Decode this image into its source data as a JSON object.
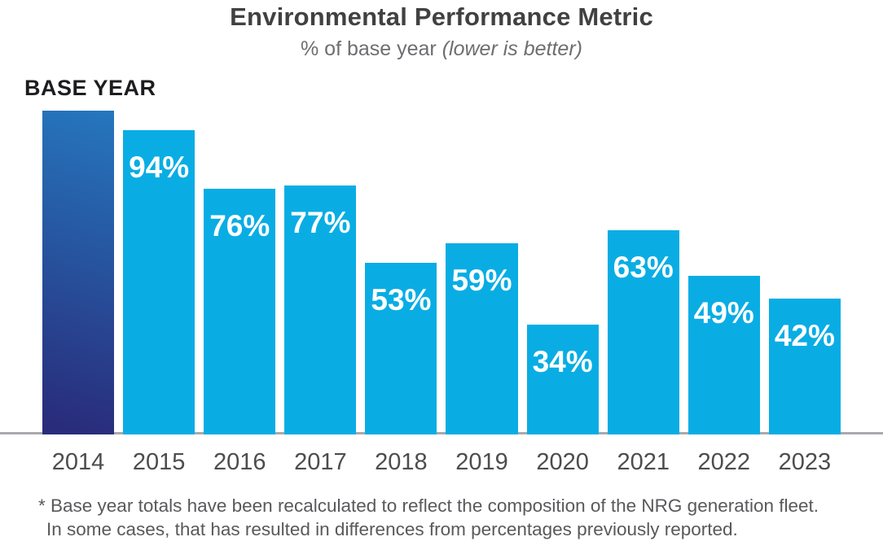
{
  "header": {
    "title": "Environmental Performance Metric",
    "subtitle_prefix": "% of base year ",
    "subtitle_italic": "(lower is better)"
  },
  "chart_data": {
    "type": "bar",
    "title": "Environmental Performance Metric",
    "subtitle": "% of base year (lower is better)",
    "base_year_label": "BASE YEAR",
    "categories": [
      "2014",
      "2015",
      "2016",
      "2017",
      "2018",
      "2019",
      "2020",
      "2021",
      "2022",
      "2023"
    ],
    "values": [
      100,
      94,
      76,
      77,
      53,
      59,
      34,
      63,
      49,
      42
    ],
    "bar_labels": [
      "",
      "94%",
      "76%",
      "77%",
      "53%",
      "59%",
      "34%",
      "63%",
      "49%",
      "42%"
    ],
    "ylim": [
      0,
      100
    ],
    "grid": false,
    "legend": "none",
    "colors": {
      "bar": "#09ade4",
      "base_bar_gradient_top": "#2577be",
      "base_bar_gradient_bottom": "#292c7b",
      "baseline": "#a8aaad",
      "title_text": "#414042",
      "subtitle_text": "#6d6e71",
      "axis_text": "#4d4d4f",
      "value_text": "#ffffff",
      "base_year_text": "#1d1d1f",
      "footnote_text": "#58595b"
    }
  },
  "footnote": {
    "line1": "* Base year totals have been recalculated to reflect the composition of the NRG generation fleet.",
    "line2": "In some cases, that has resulted in differences from percentages previously reported."
  }
}
